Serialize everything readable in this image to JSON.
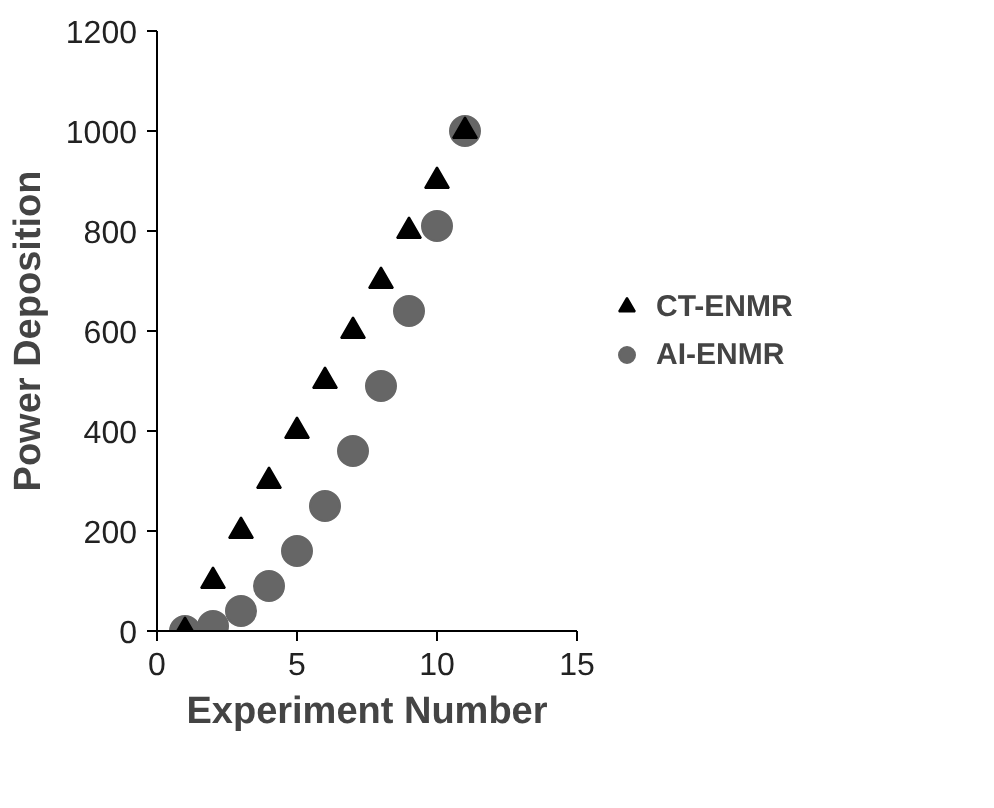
{
  "chart_data": {
    "type": "scatter",
    "xlabel": "Experiment Number",
    "ylabel": "Power Deposition",
    "x": [
      1,
      2,
      3,
      4,
      5,
      6,
      7,
      8,
      9,
      10,
      11
    ],
    "series": [
      {
        "name": "CT-ENMR",
        "color": "#000000",
        "marker": "triangle",
        "values": [
          0,
          100,
          200,
          300,
          400,
          500,
          600,
          700,
          800,
          900,
          1000
        ]
      },
      {
        "name": "AI-ENMR",
        "color": "#666666",
        "marker": "circle",
        "values": [
          0,
          10,
          40,
          90,
          160,
          250,
          360,
          490,
          640,
          810,
          1000
        ]
      }
    ],
    "xlim": [
      0,
      15
    ],
    "xticks": [
      0,
      5,
      10,
      15
    ],
    "ylim": [
      0,
      1200
    ],
    "yticks": [
      0,
      200,
      400,
      600,
      800,
      1000,
      1200
    ],
    "grid": false,
    "legend": "right"
  }
}
